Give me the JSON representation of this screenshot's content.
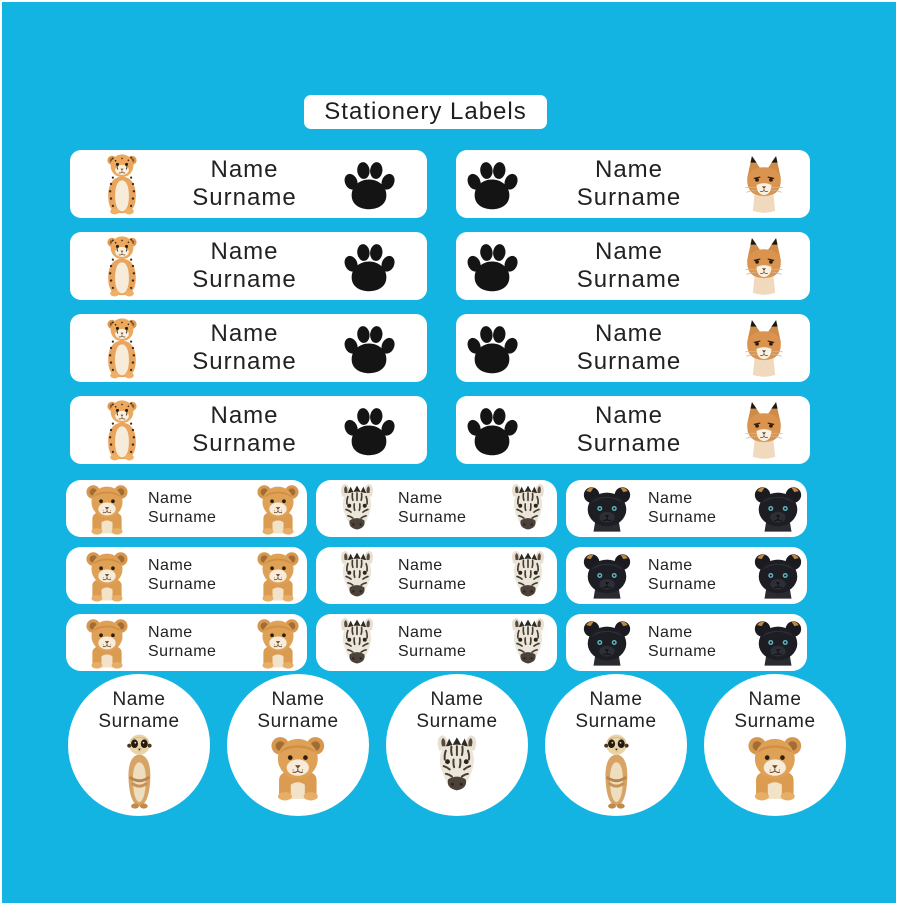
{
  "title": "Stationery Labels",
  "label_text": {
    "line1": "Name",
    "line2": "Surname"
  },
  "colors": {
    "background": "#14b4e2",
    "label_background": "#ffffff",
    "text": "#222222",
    "paw_print": "#141414"
  },
  "large_labels": {
    "row_count": 4,
    "variants": [
      {
        "left_icon": "cheetah-cub",
        "right_icon": "paw-print"
      },
      {
        "left_icon": "paw-print",
        "right_icon": "caracal-cub"
      }
    ]
  },
  "medium_labels": {
    "row_count": 3,
    "columns": [
      {
        "left_icon": "lion-cub",
        "right_icon": "lion-cub"
      },
      {
        "left_icon": "zebra-foal",
        "right_icon": "zebra-foal"
      },
      {
        "left_icon": "panther-cub",
        "right_icon": "panther-cub"
      }
    ]
  },
  "round_labels": [
    {
      "icon": "meerkat"
    },
    {
      "icon": "lion-cub"
    },
    {
      "icon": "zebra-foal"
    },
    {
      "icon": "meerkat"
    },
    {
      "icon": "lion-cub"
    }
  ]
}
